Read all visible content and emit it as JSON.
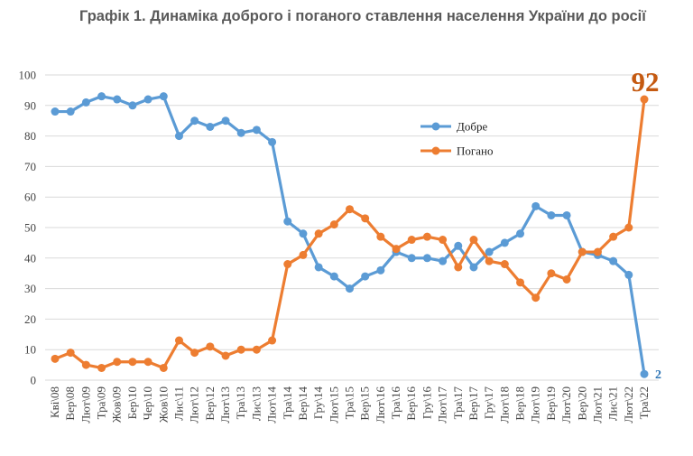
{
  "chart_data": {
    "type": "line",
    "title": "Графік 1. Динаміка доброго і поганого ставлення населення України до росії",
    "xlabel": "",
    "ylabel": "",
    "ylim": [
      0,
      100
    ],
    "yticks": [
      0,
      10,
      20,
      30,
      40,
      50,
      60,
      70,
      80,
      90,
      100
    ],
    "grid": true,
    "legend": "center-right",
    "categories": [
      "Кві\\08",
      "Вер\\08",
      "Лют\\09",
      "Тра\\09",
      "Жов\\09",
      "Бер\\10",
      "Чер\\10",
      "Жов\\10",
      "Лис\\11",
      "Лют\\12",
      "Вер\\12",
      "Лют\\13",
      "Тра\\13",
      "Лис\\13",
      "Лют\\14",
      "Тра\\14",
      "Вер\\14",
      "Гру\\14",
      "Лют\\15",
      "Тра\\15",
      "Вер\\15",
      "Лют\\16",
      "Тра\\16",
      "Вер\\16",
      "Гру\\16",
      "Лют\\17",
      "Тра\\17",
      "Вер\\17",
      "Гру\\17",
      "Лют\\18",
      "Вер\\18",
      "Лют\\19",
      "Вер\\19",
      "Лют\\20",
      "Вер\\20",
      "Лют\\21",
      "Лис\\21",
      "Лют\\22",
      "Тра\\22"
    ],
    "series": [
      {
        "name": "Добре",
        "color": "#5B9BD5",
        "values": [
          88,
          88,
          91,
          93,
          92,
          90,
          92,
          93,
          80,
          85,
          83,
          85,
          81,
          82,
          78,
          52,
          48,
          37,
          34,
          30,
          34,
          36,
          42,
          40,
          40,
          39,
          44,
          37,
          42,
          45,
          48,
          57,
          54,
          54,
          42,
          41,
          39,
          34.5,
          2
        ]
      },
      {
        "name": "Погано",
        "color": "#ED7D31",
        "values": [
          7,
          9,
          5,
          4,
          6,
          6,
          6,
          4,
          13,
          9,
          11,
          8,
          10,
          10,
          13,
          38,
          41,
          48,
          51,
          56,
          53,
          47,
          43,
          46,
          47,
          46,
          37,
          46,
          39,
          38,
          32,
          27,
          35,
          33,
          42,
          42,
          47,
          50,
          92
        ]
      }
    ],
    "annotations": [
      {
        "text": "92",
        "color": "#C55A11"
      },
      {
        "text": "2",
        "color": "#2E75B6"
      }
    ]
  }
}
